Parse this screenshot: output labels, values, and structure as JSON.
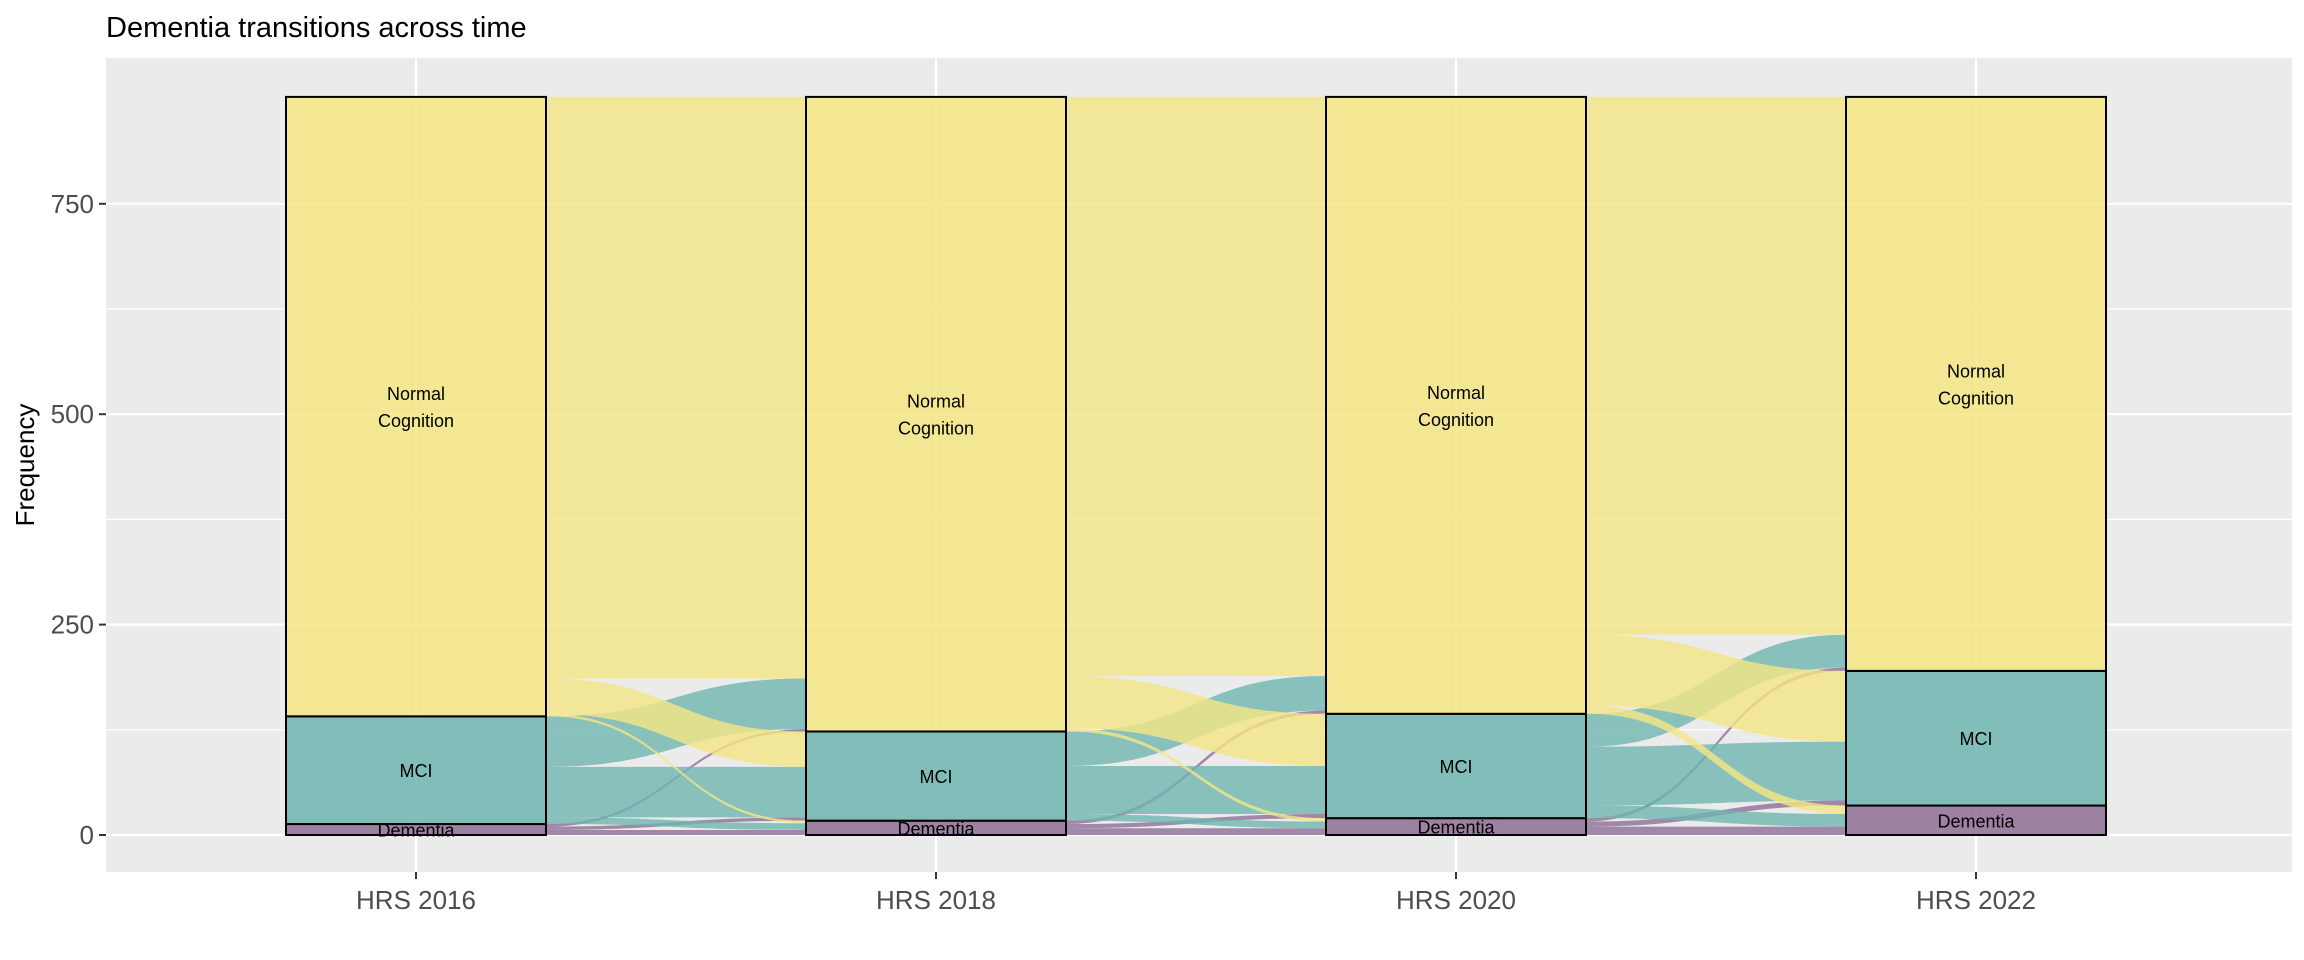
{
  "chart_data": {
    "type": "alluvial",
    "title": "Dementia transitions across time",
    "xlabel": "",
    "ylabel": "Frequency",
    "ylim": [
      -45,
      925
    ],
    "yticks": [
      0,
      250,
      500,
      750
    ],
    "ytick_labels": [
      "0",
      "250",
      "500",
      "750"
    ],
    "categories": [
      "HRS 2016",
      "HRS 2018",
      "HRS 2020",
      "HRS 2022"
    ],
    "states": [
      "Dementia",
      "MCI",
      "Normal Cognition"
    ],
    "state_labels": [
      [
        "Dementia"
      ],
      [
        "MCI"
      ],
      [
        "Normal",
        "Cognition"
      ]
    ],
    "colors": {
      "Dementia": "#8f6e97",
      "MCI": "#6fb5af",
      "Normal Cognition": "#f4e684",
      "panel": "#ebebeb",
      "grid": "#ffffff"
    },
    "strata": [
      {
        "wave": "HRS 2016",
        "counts": [
          13,
          128,
          736
        ]
      },
      {
        "wave": "HRS 2018",
        "counts": [
          17,
          106,
          754
        ]
      },
      {
        "wave": "HRS 2020",
        "counts": [
          20,
          124,
          733
        ]
      },
      {
        "wave": "HRS 2022",
        "counts": [
          35,
          160,
          682
        ]
      }
    ],
    "flows": [
      {
        "from": "HRS 2016",
        "to": "HRS 2018",
        "matrix": [
          [
            6,
            4,
            3
          ],
          [
            8,
            60,
            60
          ],
          [
            3,
            42,
            691
          ]
        ]
      },
      {
        "from": "HRS 2018",
        "to": "HRS 2020",
        "matrix": [
          [
            8,
            5,
            4
          ],
          [
            8,
            57,
            41
          ],
          [
            4,
            62,
            688
          ]
        ]
      },
      {
        "from": "HRS 2020",
        "to": "HRS 2022",
        "matrix": [
          [
            10,
            6,
            4
          ],
          [
            15,
            70,
            39
          ],
          [
            10,
            84,
            639
          ]
        ]
      }
    ]
  }
}
